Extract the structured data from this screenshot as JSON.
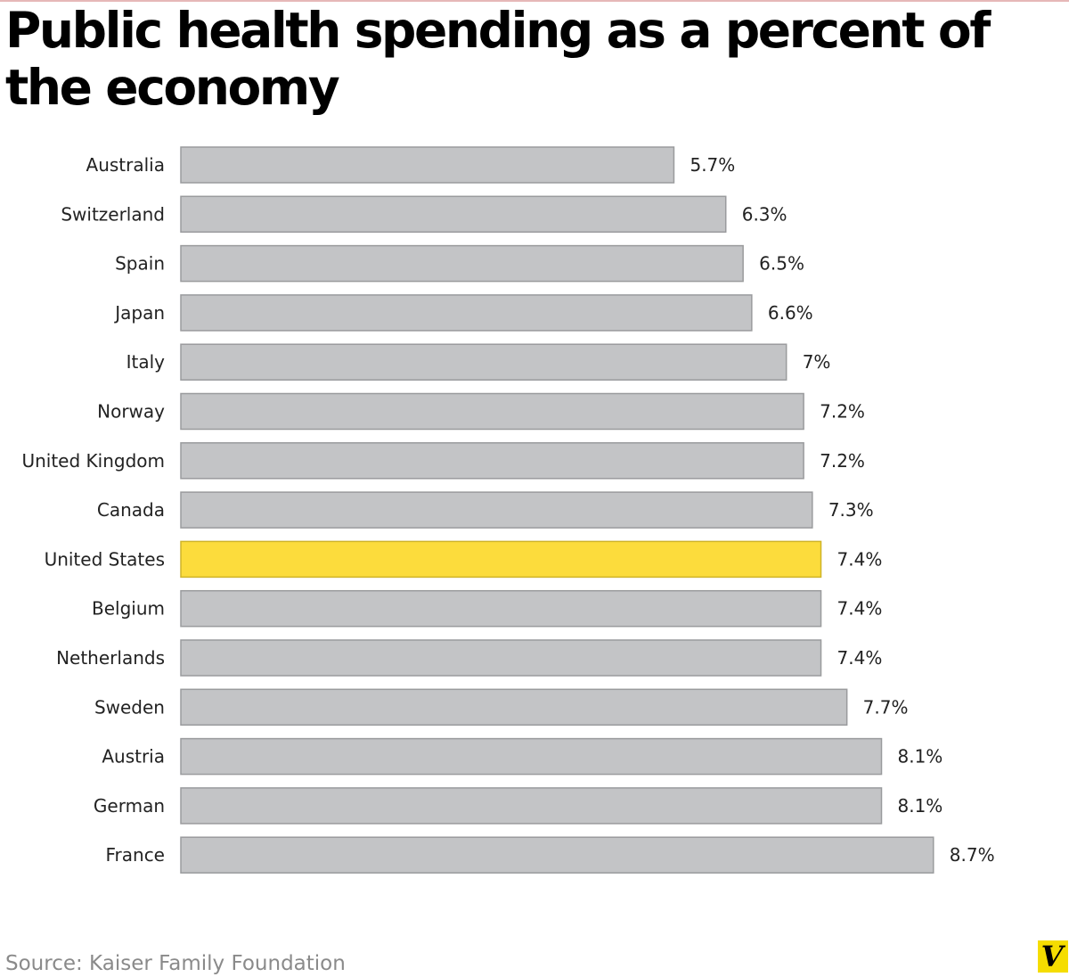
{
  "colors": {
    "bar_fill": "#c3c4c6",
    "bar_stroke": "#9a9b9d",
    "highlight_fill": "#fcdc3c",
    "highlight_stroke": "#cfb428",
    "logo_bg": "#f5dd00"
  },
  "chart_data": {
    "type": "bar",
    "orientation": "horizontal",
    "title": "Public health spending as a percent of the economy",
    "xlabel": "",
    "ylabel": "",
    "grid": false,
    "xlim": [
      0,
      9.5
    ],
    "categories": [
      "Australia",
      "Switzerland",
      "Spain",
      "Japan",
      "Italy",
      "Norway",
      "United Kingdom",
      "Canada",
      "United States",
      "Belgium",
      "Netherlands",
      "Sweden",
      "Austria",
      "German",
      "France"
    ],
    "values": [
      5.7,
      6.3,
      6.5,
      6.6,
      7.0,
      7.2,
      7.2,
      7.3,
      7.4,
      7.4,
      7.4,
      7.7,
      8.1,
      8.1,
      8.7
    ],
    "value_labels": [
      "5.7%",
      "6.3%",
      "6.5%",
      "6.6%",
      "7%",
      "7.2%",
      "7.2%",
      "7.3%",
      "7.4%",
      "7.4%",
      "7.4%",
      "7.7%",
      "8.1%",
      "8.1%",
      "8.7%"
    ],
    "highlight": [
      "United States"
    ]
  },
  "footer": {
    "source": "Source: Kaiser Family Foundation",
    "logo_letter": "V"
  }
}
